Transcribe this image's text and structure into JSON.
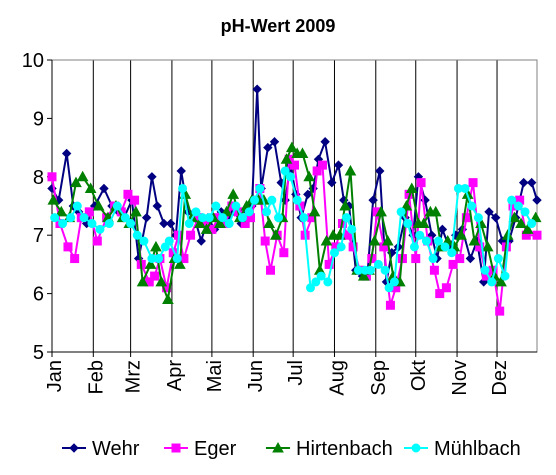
{
  "chart_data": {
    "type": "line",
    "title": "pH-Wert 2009",
    "xlabel": "",
    "ylabel": "",
    "ylim": [
      5,
      10
    ],
    "yticks": [
      5,
      6,
      7,
      8,
      9,
      10
    ],
    "x_range": [
      1,
      365
    ],
    "month_ticks": [
      {
        "label": "Jan",
        "day": 1
      },
      {
        "label": "Feb",
        "day": 32
      },
      {
        "label": "Mrz",
        "day": 60
      },
      {
        "label": "Apr",
        "day": 91
      },
      {
        "label": "Mai",
        "day": 121
      },
      {
        "label": "Jun",
        "day": 152
      },
      {
        "label": "Jul",
        "day": 182
      },
      {
        "label": "Aug",
        "day": 213
      },
      {
        "label": "Sep",
        "day": 244
      },
      {
        "label": "Okt",
        "day": 274
      },
      {
        "label": "Nov",
        "day": 305
      },
      {
        "label": "Dez",
        "day": 335
      }
    ],
    "grid": "vertical",
    "legend_position": "bottom",
    "series": [
      {
        "name": "Wehr",
        "color": "#000080",
        "marker": "diamond",
        "x": [
          1,
          6,
          12,
          17,
          21,
          27,
          33,
          40,
          46,
          51,
          55,
          61,
          66,
          72,
          76,
          80,
          85,
          90,
          94,
          98,
          103,
          108,
          113,
          118,
          123,
          128,
          133,
          138,
          143,
          148,
          151,
          155,
          158,
          163,
          168,
          173,
          176,
          180,
          184,
          188,
          193,
          197,
          201,
          206,
          211,
          216,
          220,
          224,
          229,
          234,
          238,
          242,
          247,
          252,
          256,
          261,
          266,
          272,
          276,
          281,
          286,
          290,
          294,
          299,
          304,
          309,
          315,
          320,
          325,
          329,
          334,
          339,
          344,
          349,
          355,
          361,
          365
        ],
        "y": [
          7.8,
          7.6,
          8.4,
          7.5,
          7.4,
          7.2,
          7.5,
          7.8,
          7.5,
          7.4,
          7.3,
          7.6,
          6.6,
          7.3,
          8.0,
          7.5,
          7.2,
          7.2,
          7.0,
          8.1,
          7.4,
          7.3,
          6.9,
          7.3,
          7.1,
          7.4,
          7.3,
          7.4,
          7.2,
          7.4,
          7.5,
          9.5,
          7.8,
          8.5,
          8.6,
          7.9,
          7.6,
          8.2,
          7.7,
          7.3,
          7.7,
          7.8,
          8.3,
          8.6,
          7.9,
          8.2,
          7.6,
          7.5,
          6.4,
          6.3,
          6.4,
          7.6,
          8.1,
          6.2,
          6.7,
          6.8,
          7.3,
          7.0,
          8.0,
          7.6,
          7.0,
          6.6,
          7.1,
          6.8,
          7.0,
          7.1,
          6.6,
          6.9,
          6.2,
          7.4,
          7.3,
          6.9,
          6.9,
          7.3,
          7.9,
          7.9,
          7.6
        ]
      },
      {
        "name": "Eger",
        "color": "#ff00ff",
        "marker": "square",
        "x": [
          1,
          7,
          13,
          18,
          23,
          29,
          35,
          42,
          48,
          53,
          58,
          63,
          68,
          74,
          78,
          82,
          87,
          92,
          96,
          100,
          105,
          111,
          116,
          121,
          126,
          131,
          136,
          141,
          146,
          150,
          154,
          157,
          161,
          165,
          170,
          175,
          179,
          183,
          187,
          191,
          196,
          200,
          204,
          209,
          214,
          219,
          223,
          227,
          232,
          237,
          241,
          245,
          250,
          255,
          259,
          264,
          269,
          274,
          278,
          283,
          288,
          292,
          297,
          302,
          307,
          312,
          317,
          322,
          327,
          332,
          337,
          342,
          347,
          352,
          357,
          365
        ],
        "y": [
          8.0,
          7.2,
          6.8,
          6.6,
          7.3,
          7.4,
          6.9,
          7.3,
          7.5,
          7.4,
          7.7,
          7.6,
          6.5,
          6.2,
          6.3,
          6.6,
          6.1,
          6.7,
          7.0,
          6.6,
          7.0,
          7.3,
          7.2,
          7.1,
          7.3,
          7.2,
          7.5,
          7.4,
          7.2,
          7.3,
          7.6,
          7.8,
          6.9,
          6.4,
          7.0,
          6.7,
          8.3,
          8.2,
          7.5,
          7.0,
          7.3,
          8.1,
          8.2,
          6.5,
          6.8,
          7.2,
          7.0,
          6.8,
          6.4,
          6.3,
          6.6,
          7.4,
          6.8,
          5.8,
          6.1,
          6.6,
          7.7,
          6.6,
          7.9,
          6.9,
          6.4,
          6.0,
          6.1,
          6.5,
          6.6,
          7.3,
          7.9,
          6.8,
          6.3,
          6.4,
          5.7,
          6.8,
          7.5,
          7.6,
          7.0,
          7.0
        ]
      },
      {
        "name": "Hirtenbach",
        "color": "#008000",
        "marker": "triangle",
        "x": [
          2,
          8,
          14,
          19,
          24,
          30,
          36,
          43,
          49,
          54,
          59,
          64,
          69,
          75,
          79,
          83,
          88,
          93,
          97,
          101,
          106,
          112,
          117,
          122,
          127,
          132,
          137,
          142,
          147,
          151,
          156,
          160,
          164,
          169,
          174,
          177,
          181,
          185,
          189,
          194,
          198,
          202,
          207,
          212,
          217,
          221,
          225,
          230,
          235,
          239,
          243,
          248,
          253,
          257,
          262,
          267,
          271,
          276,
          280,
          285,
          289,
          293,
          298,
          303,
          308,
          313,
          318,
          323,
          328,
          333,
          338,
          343,
          348,
          353,
          358,
          364
        ],
        "y": [
          7.6,
          7.4,
          7.3,
          7.9,
          8.0,
          7.8,
          7.5,
          7.3,
          7.5,
          7.3,
          7.2,
          7.4,
          6.2,
          6.5,
          6.8,
          6.2,
          5.9,
          6.6,
          6.5,
          7.7,
          7.3,
          7.2,
          7.1,
          7.3,
          7.2,
          7.4,
          7.7,
          7.3,
          7.5,
          7.6,
          7.6,
          7.6,
          7.2,
          7.0,
          7.3,
          8.3,
          8.5,
          8.4,
          8.4,
          8.0,
          7.4,
          6.4,
          6.9,
          7.0,
          7.0,
          7.5,
          8.1,
          6.4,
          6.3,
          6.4,
          6.9,
          7.4,
          6.9,
          6.3,
          6.2,
          7.5,
          7.8,
          7.2,
          7.2,
          7.4,
          7.4,
          6.8,
          6.9,
          6.8,
          7.0,
          7.7,
          6.9,
          7.2,
          6.8,
          6.3,
          6.2,
          7.0,
          7.3,
          7.2,
          7.1,
          7.3
        ]
      },
      {
        "name": "Mühlbach",
        "color": "#00ffff",
        "marker": "circle",
        "x": [
          3,
          9,
          15,
          20,
          25,
          31,
          37,
          44,
          50,
          56,
          60,
          65,
          70,
          76,
          81,
          86,
          89,
          95,
          99,
          104,
          109,
          114,
          119,
          124,
          129,
          134,
          139,
          144,
          149,
          153,
          157,
          162,
          166,
          171,
          176,
          180,
          185,
          190,
          195,
          199,
          203,
          208,
          213,
          218,
          222,
          226,
          231,
          236,
          240,
          246,
          251,
          254,
          258,
          263,
          268,
          273,
          277,
          282,
          287,
          291,
          296,
          301,
          306,
          311,
          316,
          321,
          326,
          331,
          336,
          341,
          346,
          351,
          356,
          361
        ],
        "y": [
          7.3,
          7.2,
          7.3,
          7.5,
          7.3,
          7.2,
          7.1,
          7.2,
          7.5,
          7.3,
          7.2,
          7.0,
          6.9,
          6.6,
          6.6,
          6.8,
          6.9,
          6.6,
          7.8,
          7.2,
          7.4,
          7.3,
          7.3,
          7.5,
          7.3,
          7.2,
          7.5,
          7.3,
          7.4,
          7.6,
          7.8,
          7.4,
          7.6,
          7.3,
          8.1,
          8.0,
          7.6,
          7.3,
          6.1,
          6.2,
          6.3,
          6.2,
          6.7,
          6.8,
          7.3,
          7.1,
          6.4,
          6.4,
          6.4,
          6.5,
          6.4,
          6.1,
          6.2,
          7.4,
          7.2,
          6.8,
          7.0,
          6.9,
          6.6,
          6.9,
          6.8,
          6.7,
          7.8,
          7.8,
          7.5,
          7.3,
          6.4,
          6.2,
          6.6,
          6.3,
          7.6,
          7.5,
          7.4,
          7.2
        ]
      }
    ]
  }
}
